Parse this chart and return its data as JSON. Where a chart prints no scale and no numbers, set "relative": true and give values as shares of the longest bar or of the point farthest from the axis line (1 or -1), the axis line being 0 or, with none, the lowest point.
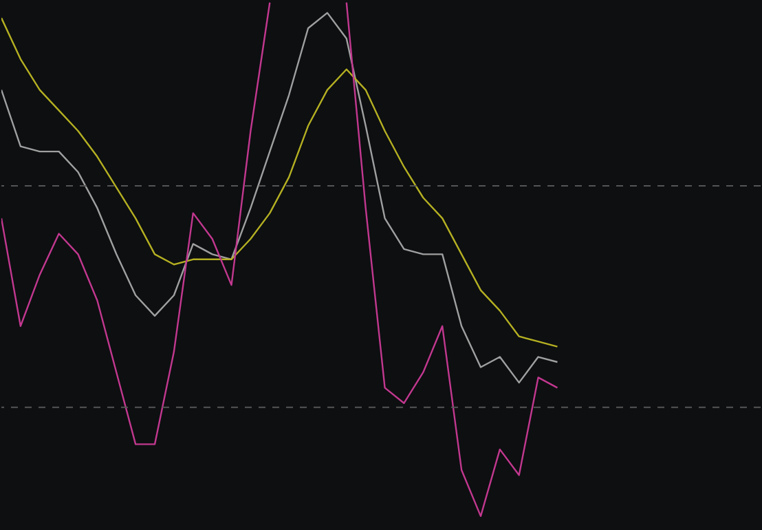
{
  "chart_data": {
    "type": "line",
    "relative": true,
    "line_style": "solid",
    "marker": "none",
    "categories": [
      null,
      null,
      null,
      null,
      null,
      null,
      null,
      null,
      null,
      null,
      null,
      null,
      null,
      null,
      null,
      null,
      null,
      null,
      null,
      null,
      null,
      null,
      null,
      null,
      null,
      null,
      null,
      null,
      null,
      null,
      null,
      null,
      null,
      null,
      null,
      null,
      null,
      null,
      null,
      null
    ],
    "series": [
      {
        "color": "#a0a0a0",
        "values": [
          0.83,
          0.72,
          0.71,
          0.71,
          0.67,
          0.6,
          0.51,
          0.43,
          0.39,
          0.43,
          0.53,
          0.51,
          0.5,
          0.6,
          0.71,
          0.82,
          0.95,
          0.98,
          0.93,
          0.76,
          0.58,
          0.52,
          0.51,
          0.51,
          0.37,
          0.29,
          0.31,
          0.26,
          0.31,
          0.3,
          null,
          null,
          null,
          null,
          null,
          null,
          null,
          null,
          null,
          null
        ]
      },
      {
        "color": "#b5b022",
        "values": [
          0.97,
          0.89,
          0.83,
          0.79,
          0.75,
          0.7,
          0.64,
          0.58,
          0.51,
          0.49,
          0.5,
          0.5,
          0.5,
          0.54,
          0.59,
          0.66,
          0.76,
          0.83,
          0.87,
          0.83,
          0.75,
          0.68,
          0.62,
          0.58,
          0.51,
          0.44,
          0.4,
          0.35,
          0.34,
          0.33,
          null,
          null,
          null,
          null,
          null,
          null,
          null,
          null,
          null,
          null
        ]
      },
      {
        "color": "#c2388f",
        "values": [
          0.58,
          0.37,
          0.47,
          0.55,
          0.51,
          0.42,
          0.28,
          0.14,
          0.14,
          0.32,
          0.59,
          0.54,
          0.45,
          0.75,
          1.0,
          null,
          null,
          null,
          1.0,
          0.6,
          0.25,
          0.22,
          0.28,
          0.37,
          0.09,
          0.0,
          0.13,
          0.08,
          0.27,
          0.25,
          null,
          null,
          null,
          null,
          null,
          null,
          null,
          null,
          null,
          null
        ]
      }
    ],
    "ref_lines": [
      {
        "axis": "y",
        "value": 0.643,
        "color": "#555555",
        "line_style": "dashed"
      },
      {
        "axis": "y",
        "value": 0.212,
        "color": "#555555",
        "line_style": "dashed"
      }
    ]
  }
}
